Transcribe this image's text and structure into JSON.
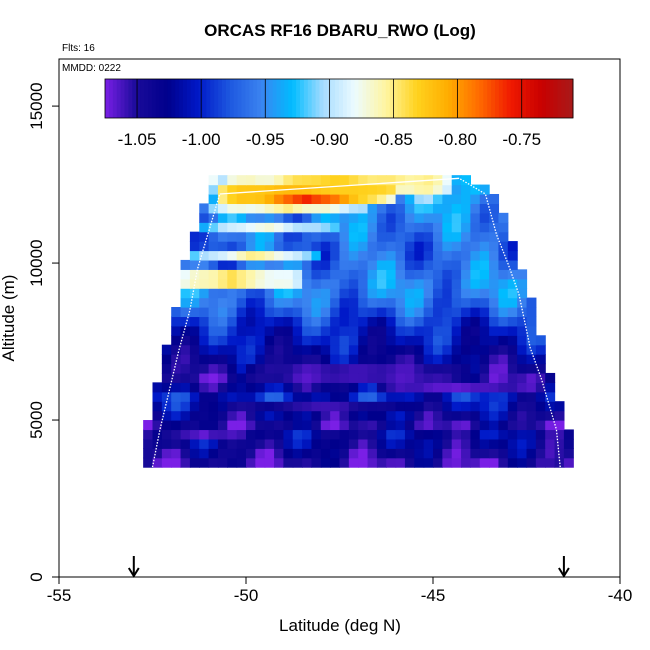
{
  "chart_data": {
    "type": "heatmap",
    "title": "ORCAS RF16 DBARU_RWO (Log)",
    "flights_label": "Flts: 16",
    "date_label": "MMDD: 0222",
    "xlabel": "Latitude (deg N)",
    "ylabel": "Altitude (m)",
    "xlim": [
      -55,
      -40
    ],
    "ylim": [
      0,
      16500
    ],
    "xticks": [
      -55,
      -50,
      -45,
      -40
    ],
    "xtick_labels": [
      "-55",
      "-50",
      "-45",
      "-40"
    ],
    "yticks": [
      0,
      5000,
      10000,
      15000
    ],
    "ytick_labels": [
      "0",
      "5000",
      "10000",
      "15000"
    ],
    "grid": false,
    "colorbar": {
      "placement": "top-inside",
      "range": [
        -1.075,
        -0.71
      ],
      "ticks": [
        -1.05,
        -1.0,
        -0.95,
        -0.9,
        -0.85,
        -0.8,
        -0.75
      ],
      "tick_labels": [
        "-1.05",
        "-1.00",
        "-0.95",
        "-0.90",
        "-0.85",
        "-0.80",
        "-0.75"
      ],
      "stops": [
        "#7a1fe6",
        "#1a0b9a",
        "#00008c",
        "#0019c8",
        "#1d58e0",
        "#3b83f0",
        "#00bcff",
        "#a8dcff",
        "#ecfbff",
        "#fff5a0",
        "#ffd21e",
        "#ffad00",
        "#ff6a00",
        "#f01a00",
        "#c80000",
        "#a81a1a"
      ]
    },
    "lat_bin_size": 0.25,
    "alt_bin_size": 300,
    "envelope": {
      "left_edge": [
        [
          3500,
          -52.5
        ],
        [
          4700,
          -52.3
        ],
        [
          5700,
          -52.1
        ],
        [
          7200,
          -51.8
        ],
        [
          8500,
          -51.5
        ],
        [
          9800,
          -51.3
        ],
        [
          11000,
          -51.0
        ],
        [
          12200,
          -50.7
        ]
      ],
      "right_edge": [
        [
          3500,
          -41.6
        ],
        [
          4700,
          -41.7
        ],
        [
          6300,
          -42.1
        ],
        [
          7300,
          -42.4
        ],
        [
          9000,
          -42.7
        ],
        [
          10000,
          -43.0
        ],
        [
          10900,
          -43.3
        ],
        [
          12200,
          -43.6
        ],
        [
          12700,
          -44.3
        ]
      ]
    },
    "row_profile": [
      {
        "alt": 3500,
        "v": -1.06
      },
      {
        "alt": 4000,
        "v": -1.04
      },
      {
        "alt": 4500,
        "v": -1.02
      },
      {
        "alt": 4800,
        "v": -1.05
      },
      {
        "alt": 5200,
        "v": -1.03
      },
      {
        "alt": 5700,
        "v": -1.0
      },
      {
        "alt": 6300,
        "v": -1.05
      },
      {
        "alt": 6900,
        "v": -1.03
      },
      {
        "alt": 7500,
        "v": -1.01
      },
      {
        "alt": 8000,
        "v": -1.0
      },
      {
        "alt": 8600,
        "v": -0.97
      },
      {
        "alt": 9200,
        "v": -0.95
      },
      {
        "alt": 9800,
        "v": -0.96
      },
      {
        "alt": 10400,
        "v": -0.97
      },
      {
        "alt": 11000,
        "v": -0.96
      },
      {
        "alt": 11600,
        "v": -0.95
      },
      {
        "alt": 12200,
        "v": -0.93
      },
      {
        "alt": 12700,
        "v": -0.9
      }
    ],
    "features": [
      {
        "lat0": -52.3,
        "lat1": -48.5,
        "alt0": 9300,
        "alt1": 9700,
        "v": -0.84
      },
      {
        "lat0": -51.6,
        "lat1": -48.0,
        "alt0": 10000,
        "alt1": 10400,
        "v": -0.85
      },
      {
        "lat0": -51.3,
        "lat1": -47.5,
        "alt0": 10900,
        "alt1": 11300,
        "v": -0.87
      },
      {
        "lat0": -51.0,
        "lat1": -46.8,
        "alt0": 11600,
        "alt1": 12000,
        "v": -0.85
      },
      {
        "lat0": -50.8,
        "lat1": -46.0,
        "alt0": 11900,
        "alt1": 12500,
        "v": -0.76
      },
      {
        "lat0": -50.5,
        "lat1": -44.6,
        "alt0": 12300,
        "alt1": 12800,
        "v": -0.83
      },
      {
        "lat0": -46.5,
        "lat1": -42.1,
        "alt0": 6000,
        "alt1": 6300,
        "v": -1.07
      },
      {
        "lat0": -52.3,
        "lat1": -50.0,
        "alt0": 4300,
        "alt1": 4600,
        "v": -1.07
      },
      {
        "lat0": -50.5,
        "lat1": -45.5,
        "alt0": 5300,
        "alt1": 5700,
        "v": -1.06
      },
      {
        "lat0": -50.0,
        "lat1": -44.0,
        "alt0": 6300,
        "alt1": 6700,
        "v": -1.06
      }
    ],
    "annotations": [
      {
        "type": "arrow",
        "lat": -53.0,
        "label": ""
      },
      {
        "type": "arrow",
        "lat": -41.5,
        "label": ""
      }
    ]
  }
}
